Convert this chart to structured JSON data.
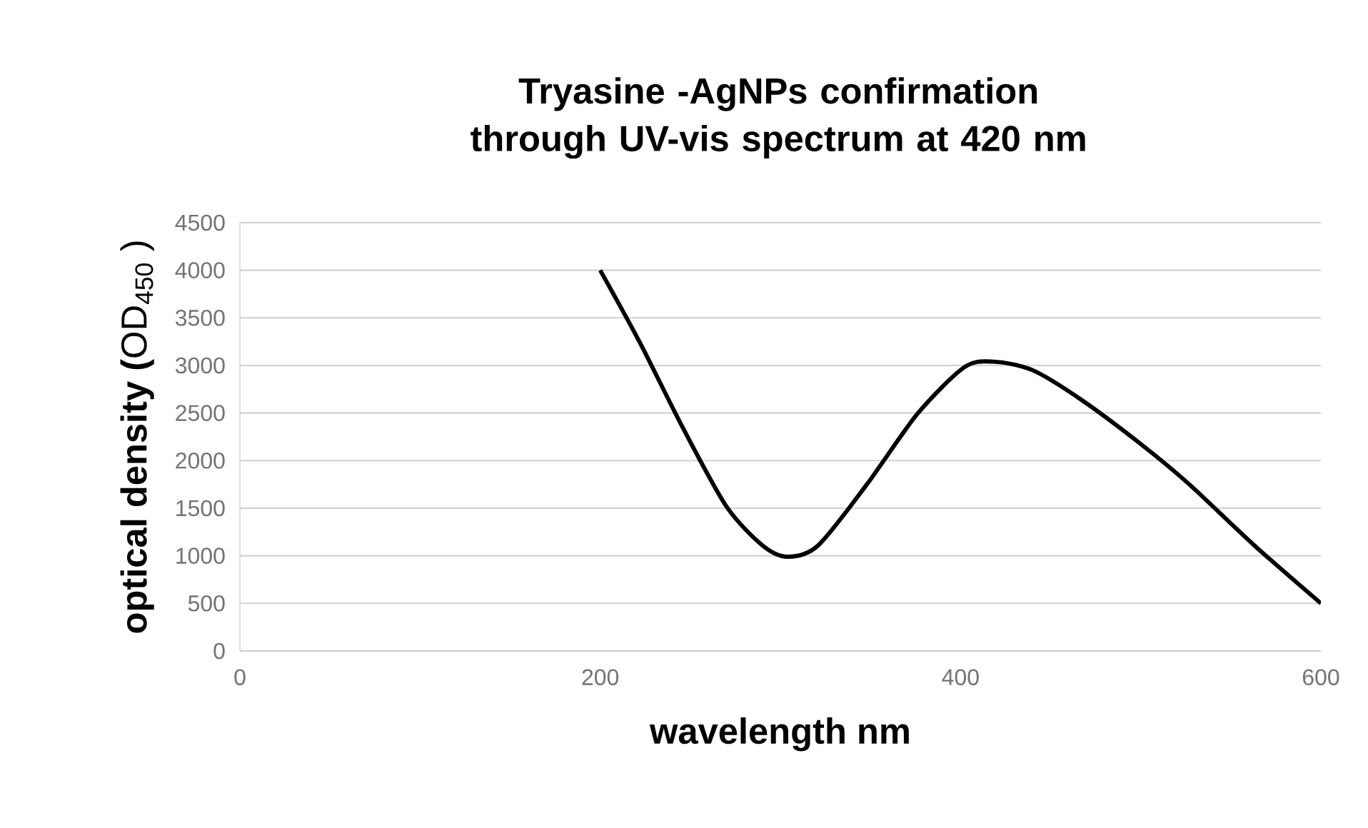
{
  "chart_data": {
    "type": "line",
    "title": "Tryasine -AgNPs confirmation through UV-vis spectrum at 420 nm",
    "xlabel": "wavelength nm",
    "ylabel": "**optical density (**OD$_{450}$ )",
    "x": [
      200,
      222,
      246,
      270,
      290,
      304,
      321,
      348,
      376,
      402,
      418,
      440,
      467,
      501,
      527,
      563,
      600
    ],
    "series": [
      {
        "color": "#000000",
        "values": [
          4000,
          3240,
          2340,
          1520,
          1110,
          990,
          1110,
          1750,
          2490,
          2980,
          3040,
          2950,
          2640,
          2160,
          1750,
          1110,
          500
        ]
      }
    ],
    "xlim": [
      0,
      600
    ],
    "ylim": [
      0,
      4500
    ],
    "xticks": [
      0,
      200,
      400,
      600
    ],
    "yticks": [
      0,
      500,
      1000,
      1500,
      2000,
      2500,
      3000,
      3500,
      4000,
      4500
    ],
    "grid": "y"
  }
}
